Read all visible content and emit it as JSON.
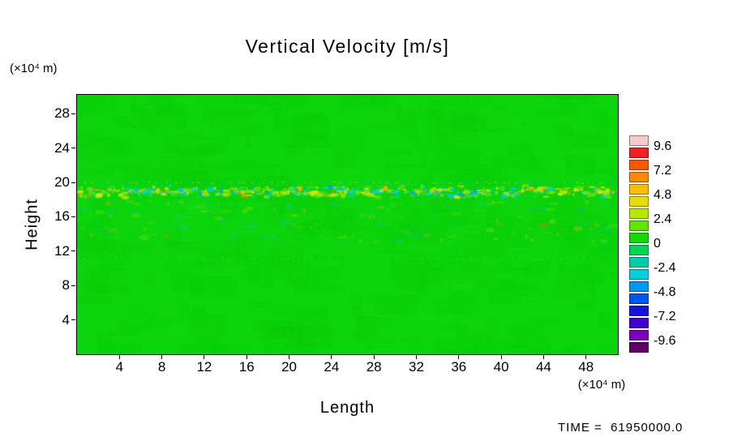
{
  "chart_data": {
    "type": "heatmap",
    "title": "Vertical Velocity [m/s]",
    "xlabel": "Length",
    "ylabel": "Height",
    "x_unit": "(×10⁴ m)",
    "y_unit": "(×10⁴ m)",
    "time_label": "TIME =  61950000.0",
    "xlim": [
      0,
      51
    ],
    "ylim": [
      0,
      30.2
    ],
    "x_ticks": [
      4,
      8,
      12,
      16,
      20,
      24,
      28,
      32,
      36,
      40,
      44,
      48
    ],
    "y_ticks": [
      4,
      8,
      12,
      16,
      20,
      24,
      28
    ],
    "grid": false,
    "legend_position": "right-colorbar",
    "colorbar": {
      "tick_labels": [
        "9.6",
        "7.2",
        "4.8",
        "2.4",
        "0",
        "-2.4",
        "-4.8",
        "-7.2",
        "-9.6"
      ],
      "level_step": 1.2,
      "value_min": -9.6,
      "value_max": 9.6,
      "colors_top_to_bottom": [
        "#f6c9cf",
        "#ee2222",
        "#ff5500",
        "#ff8800",
        "#ffbb00",
        "#e8dd00",
        "#b9e800",
        "#63e300",
        "#12d900",
        "#00d455",
        "#00ccaa",
        "#00cfe0",
        "#0099ee",
        "#0055ee",
        "#1313dd",
        "#4400cc",
        "#7a00bb",
        "#5e0066"
      ]
    },
    "field": {
      "description": "Field is approximately 0 m/s (uniform bright green) everywhere except a turbulent speckle band of small positive (yellow/orange) and negative (cyan/blue) perturbations centered near height 18.9e4 m, plus a faint dotted perturbation line near height 11.2e4 m.",
      "background_value": 0,
      "background_color": "#0bd40b",
      "seed": 1337,
      "mottle_colors": [
        "#0fd80f",
        "#08cf08",
        "#13da13",
        "#05ca05",
        "#17dd17"
      ],
      "band": {
        "center": 18.9,
        "half_width": 8
      },
      "dotted_line_height": 11.2,
      "speckle_colors": [
        {
          "color": "#a8e400",
          "w": 0.24
        },
        {
          "color": "#d9e800",
          "w": 0.16
        },
        {
          "color": "#00d4b4",
          "w": 0.15
        },
        {
          "color": "#00cfe0",
          "w": 0.12
        },
        {
          "color": "#55dd22",
          "w": 0.18
        },
        {
          "color": "#ffb100",
          "w": 0.06
        },
        {
          "color": "#00a0f0",
          "w": 0.05
        },
        {
          "color": "#ff7700",
          "w": 0.04
        }
      ]
    }
  }
}
